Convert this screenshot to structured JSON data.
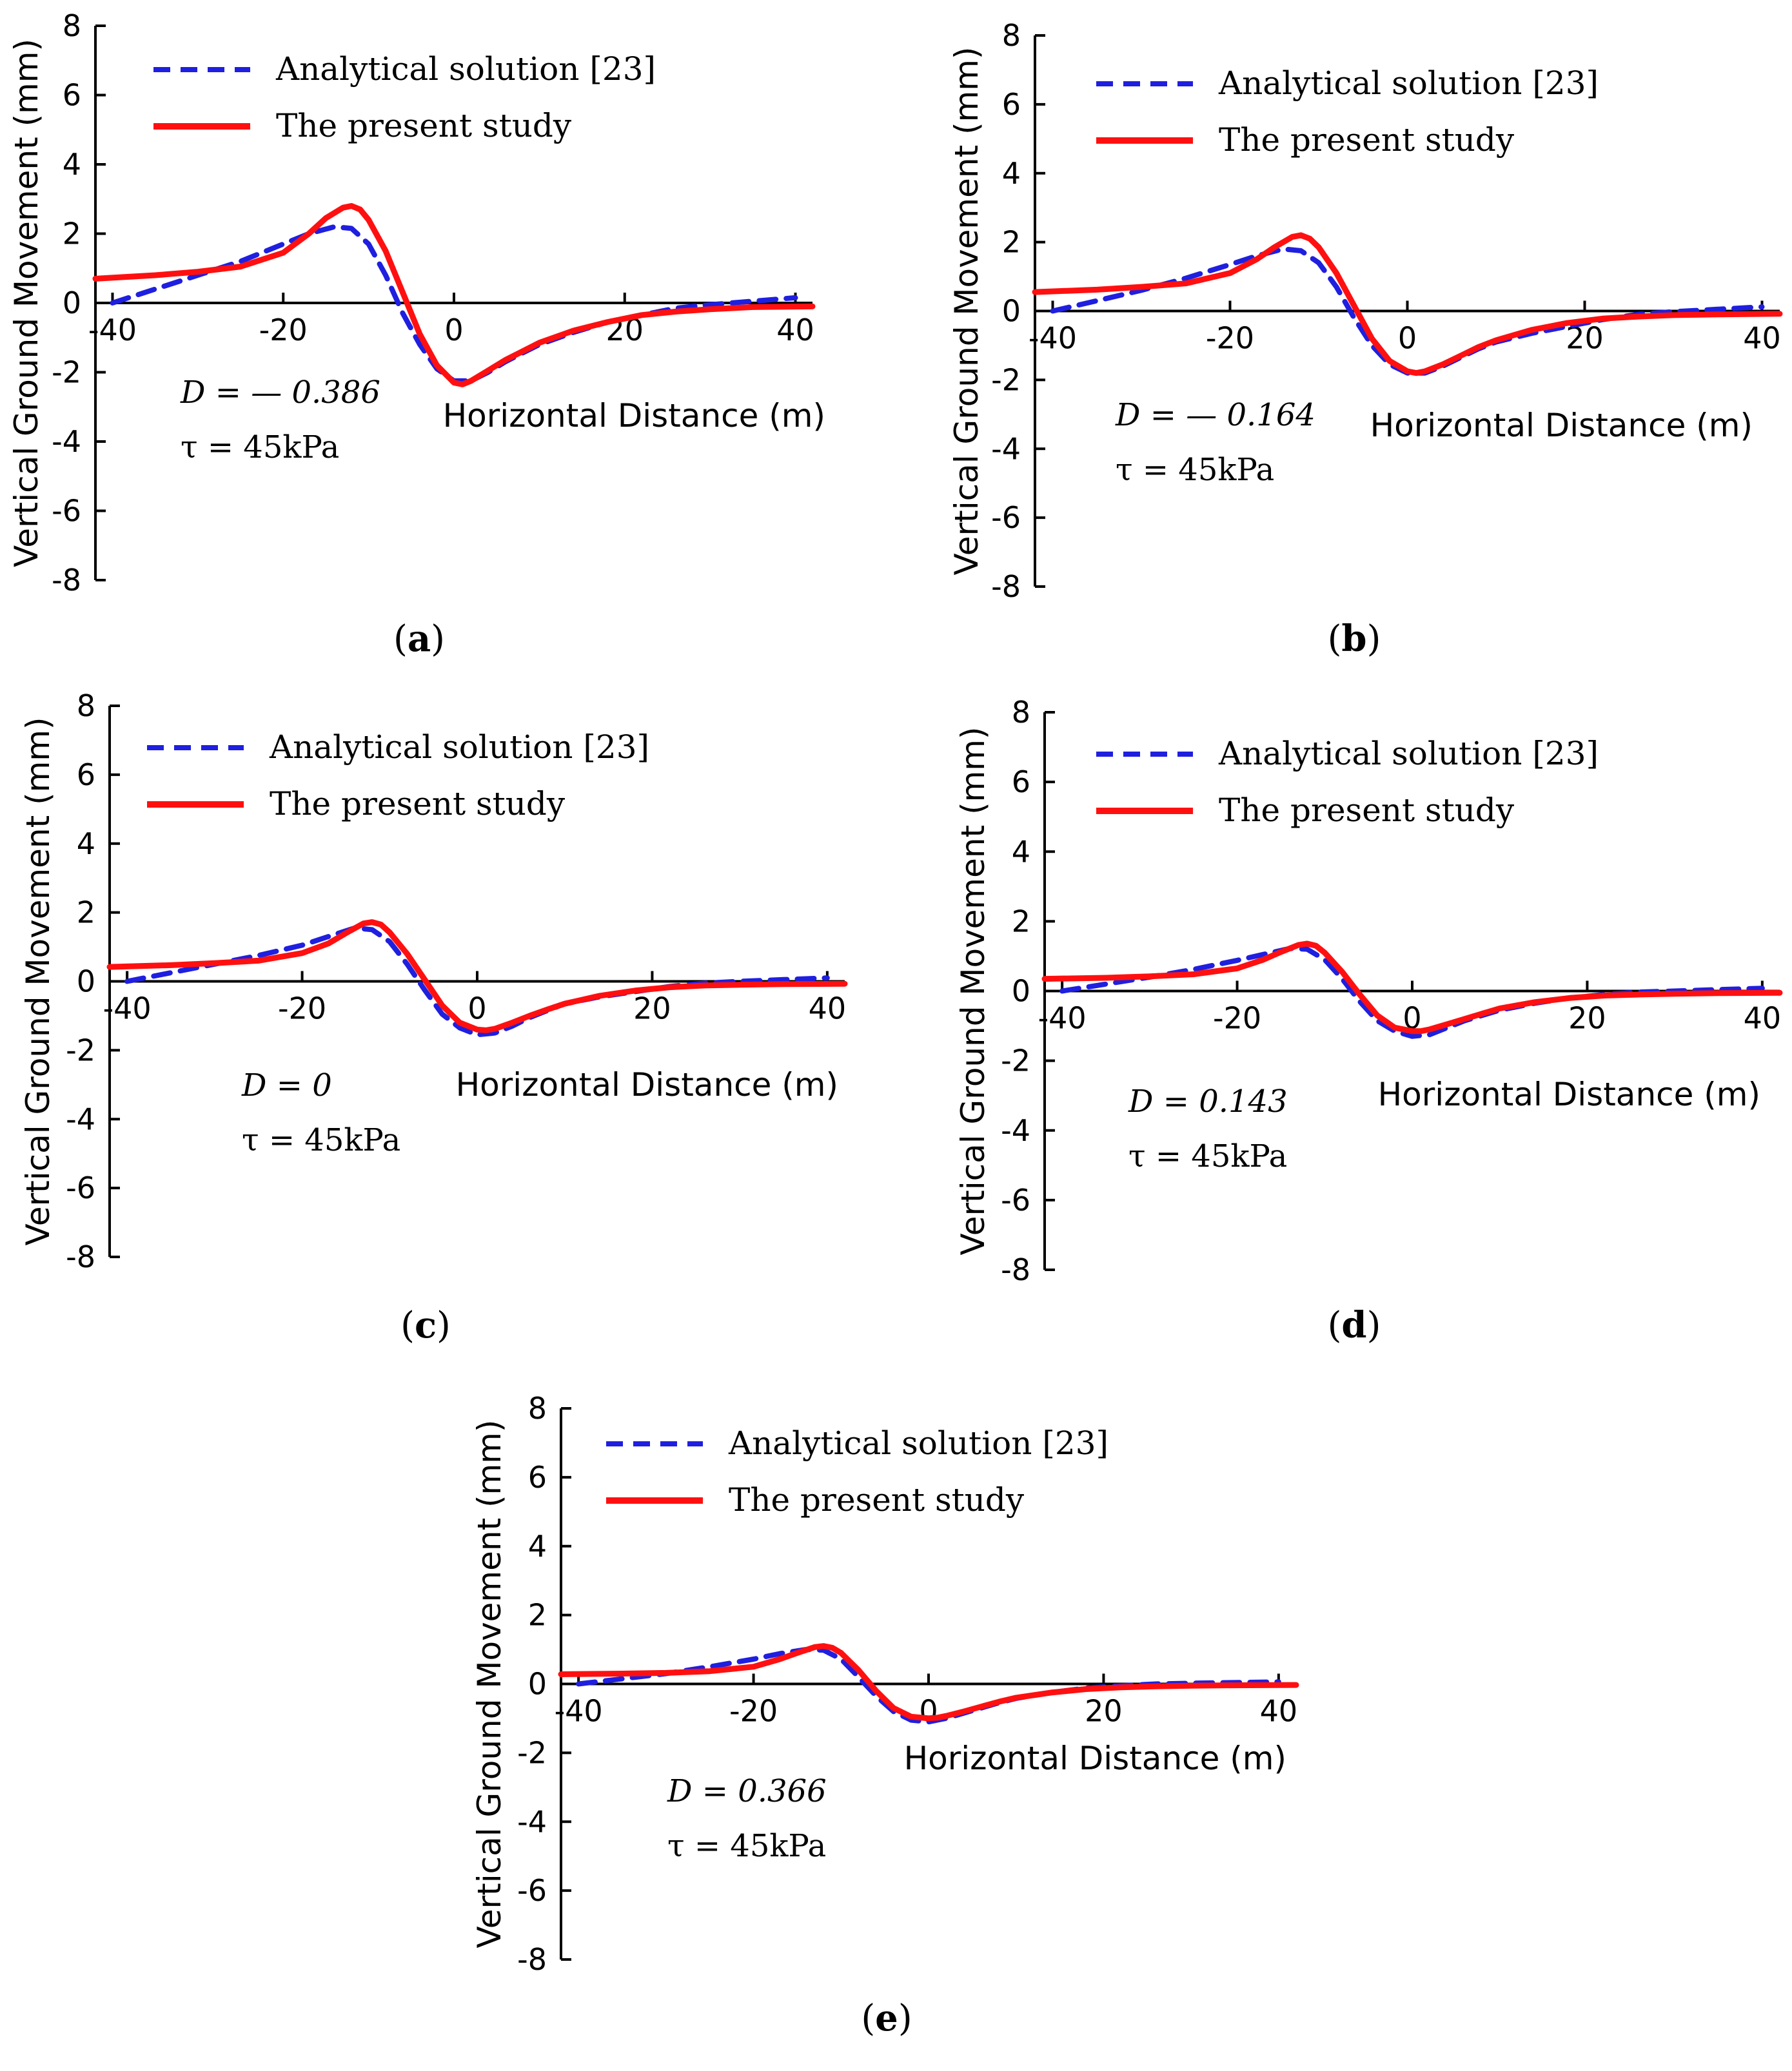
{
  "colors": {
    "analytical": "#1f1fe0",
    "present": "#ff1010",
    "axis": "#000000"
  },
  "chart_data": [
    {
      "panel": "a",
      "panel_label_open": "(",
      "panel_label_letter": "a",
      "panel_label_close": ")",
      "type": "line",
      "xlim": [
        -42,
        42
      ],
      "ylim": [
        -8,
        8
      ],
      "xticks": [
        -40,
        -20,
        0,
        20,
        40
      ],
      "yticks": [
        8,
        6,
        4,
        2,
        0,
        -2,
        -4,
        -6,
        -8
      ],
      "xlabel": "Horizontal Distance (m)",
      "ylabel": "Vertical Ground Movement (mm)",
      "annotation_D": "D = — 0.386",
      "annotation_tau": "τ  = 45kPa",
      "series": [
        {
          "name": "Analytical solution [23]",
          "style": "dashed",
          "x": [
            -40,
            -35,
            -30,
            -25,
            -20,
            -17,
            -14,
            -12,
            -10,
            -8,
            -6,
            -4,
            -2,
            0,
            2,
            4,
            6,
            8,
            10,
            14,
            18,
            22,
            26,
            30,
            35,
            40
          ],
          "y": [
            0.0,
            0.4,
            0.8,
            1.2,
            1.7,
            2.0,
            2.2,
            2.15,
            1.7,
            0.8,
            -0.3,
            -1.2,
            -1.9,
            -2.25,
            -2.25,
            -2.0,
            -1.7,
            -1.45,
            -1.2,
            -0.85,
            -0.55,
            -0.35,
            -0.15,
            -0.05,
            0.05,
            0.15
          ]
        },
        {
          "name": "The present study",
          "style": "solid",
          "x": [
            -42,
            -35,
            -30,
            -25,
            -20,
            -17,
            -15,
            -13,
            -12,
            -11,
            -10,
            -8,
            -6,
            -4,
            -2,
            0,
            1,
            2,
            4,
            6,
            8,
            10,
            14,
            18,
            22,
            26,
            30,
            35,
            42
          ],
          "y": [
            0.7,
            0.8,
            0.9,
            1.05,
            1.45,
            2.0,
            2.45,
            2.75,
            2.8,
            2.7,
            2.4,
            1.5,
            0.3,
            -0.9,
            -1.8,
            -2.3,
            -2.35,
            -2.25,
            -1.95,
            -1.65,
            -1.4,
            -1.15,
            -0.8,
            -0.55,
            -0.35,
            -0.25,
            -0.18,
            -0.12,
            -0.1
          ]
        }
      ]
    },
    {
      "panel": "b",
      "panel_label_open": "(",
      "panel_label_letter": "b",
      "panel_label_close": ")",
      "type": "line",
      "xlim": [
        -42,
        42
      ],
      "ylim": [
        -8,
        8
      ],
      "xticks": [
        -40,
        -20,
        0,
        20,
        40
      ],
      "yticks": [
        8,
        6,
        4,
        2,
        0,
        -2,
        -4,
        -6,
        -8
      ],
      "xlabel": "Horizontal Distance (m)",
      "ylabel": "Vertical Ground Movement (mm)",
      "annotation_D": "D = — 0.164",
      "annotation_tau": "τ = 45kPa",
      "series": [
        {
          "name": "Analytical solution [23]",
          "style": "dashed",
          "x": [
            -40,
            -35,
            -30,
            -25,
            -20,
            -17,
            -14,
            -12,
            -10,
            -8,
            -6,
            -4,
            -2,
            0,
            2,
            4,
            6,
            8,
            10,
            14,
            18,
            22,
            26,
            30,
            35,
            40
          ],
          "y": [
            0.0,
            0.3,
            0.6,
            0.95,
            1.35,
            1.6,
            1.8,
            1.75,
            1.4,
            0.7,
            -0.2,
            -1.0,
            -1.55,
            -1.8,
            -1.8,
            -1.6,
            -1.35,
            -1.1,
            -0.9,
            -0.65,
            -0.45,
            -0.25,
            -0.1,
            -0.02,
            0.05,
            0.12
          ]
        },
        {
          "name": "The present study",
          "style": "solid",
          "x": [
            -42,
            -35,
            -30,
            -25,
            -20,
            -17,
            -15,
            -13,
            -12,
            -11,
            -10,
            -8,
            -6,
            -4,
            -2,
            0,
            1,
            2,
            4,
            6,
            8,
            10,
            14,
            18,
            22,
            26,
            30,
            35,
            42
          ],
          "y": [
            0.55,
            0.62,
            0.7,
            0.8,
            1.1,
            1.5,
            1.85,
            2.15,
            2.2,
            2.1,
            1.85,
            1.1,
            0.15,
            -0.8,
            -1.45,
            -1.75,
            -1.8,
            -1.75,
            -1.55,
            -1.3,
            -1.05,
            -0.85,
            -0.55,
            -0.35,
            -0.22,
            -0.16,
            -0.12,
            -0.1,
            -0.08
          ]
        }
      ]
    },
    {
      "panel": "c",
      "panel_label_open": "(",
      "panel_label_letter": "c",
      "panel_label_close": ")",
      "type": "line",
      "xlim": [
        -42,
        42
      ],
      "ylim": [
        -8,
        8
      ],
      "xticks": [
        -40,
        -20,
        0,
        20,
        40
      ],
      "yticks": [
        8,
        6,
        4,
        2,
        0,
        -2,
        -4,
        -6,
        -8
      ],
      "xlabel": "Horizontal Distance (m)",
      "ylabel": "Vertical Ground Movement (mm)",
      "annotation_D": "D = 0",
      "annotation_tau": "τ = 45kPa",
      "series": [
        {
          "name": "Analytical solution [23]",
          "style": "dashed",
          "x": [
            -40,
            -35,
            -30,
            -25,
            -20,
            -17,
            -14,
            -12,
            -10,
            -8,
            -6,
            -4,
            -2,
            0,
            2,
            4,
            6,
            8,
            10,
            14,
            18,
            22,
            26,
            30,
            35,
            40
          ],
          "y": [
            0.0,
            0.25,
            0.5,
            0.75,
            1.05,
            1.3,
            1.55,
            1.5,
            1.15,
            0.5,
            -0.25,
            -0.95,
            -1.35,
            -1.55,
            -1.5,
            -1.3,
            -1.05,
            -0.85,
            -0.65,
            -0.45,
            -0.3,
            -0.15,
            -0.05,
            0.0,
            0.05,
            0.1
          ]
        },
        {
          "name": "The present study",
          "style": "solid",
          "x": [
            -42,
            -35,
            -30,
            -25,
            -20,
            -17,
            -15,
            -13,
            -12,
            -11,
            -10,
            -8,
            -6,
            -4,
            -2,
            0,
            1,
            2,
            4,
            6,
            8,
            10,
            14,
            18,
            22,
            26,
            30,
            35,
            42
          ],
          "y": [
            0.42,
            0.47,
            0.53,
            0.6,
            0.82,
            1.1,
            1.4,
            1.68,
            1.72,
            1.65,
            1.42,
            0.8,
            0.05,
            -0.7,
            -1.2,
            -1.4,
            -1.42,
            -1.38,
            -1.2,
            -1.0,
            -0.82,
            -0.65,
            -0.42,
            -0.27,
            -0.17,
            -0.12,
            -0.1,
            -0.08,
            -0.07
          ]
        }
      ]
    },
    {
      "panel": "d",
      "panel_label_open": "(",
      "panel_label_letter": "d",
      "panel_label_close": ")",
      "type": "line",
      "xlim": [
        -42,
        42
      ],
      "ylim": [
        -8,
        8
      ],
      "xticks": [
        -40,
        -20,
        0,
        20,
        40
      ],
      "yticks": [
        8,
        6,
        4,
        2,
        0,
        -2,
        -4,
        -6,
        -8
      ],
      "xlabel": "Horizontal Distance (m)",
      "ylabel": "Vertical Ground Movement (mm)",
      "annotation_D": "D = 0.143",
      "annotation_tau": "τ = 45kPa",
      "series": [
        {
          "name": "Analytical solution [23]",
          "style": "dashed",
          "x": [
            -40,
            -35,
            -30,
            -25,
            -20,
            -17,
            -14,
            -12,
            -10,
            -8,
            -6,
            -4,
            -2,
            0,
            2,
            4,
            6,
            8,
            10,
            14,
            18,
            22,
            26,
            30,
            35,
            40
          ],
          "y": [
            0.0,
            0.2,
            0.4,
            0.62,
            0.88,
            1.05,
            1.22,
            1.2,
            0.9,
            0.35,
            -0.3,
            -0.85,
            -1.15,
            -1.3,
            -1.25,
            -1.05,
            -0.85,
            -0.7,
            -0.55,
            -0.35,
            -0.2,
            -0.1,
            -0.03,
            0.0,
            0.04,
            0.08
          ]
        },
        {
          "name": "The present study",
          "style": "solid",
          "x": [
            -42,
            -35,
            -30,
            -25,
            -20,
            -17,
            -15,
            -13,
            -12,
            -11,
            -10,
            -8,
            -6,
            -4,
            -2,
            0,
            1,
            2,
            4,
            6,
            8,
            10,
            14,
            18,
            22,
            26,
            30,
            35,
            42
          ],
          "y": [
            0.35,
            0.38,
            0.42,
            0.48,
            0.65,
            0.9,
            1.12,
            1.32,
            1.36,
            1.3,
            1.1,
            0.55,
            -0.1,
            -0.7,
            -1.05,
            -1.15,
            -1.15,
            -1.1,
            -0.95,
            -0.8,
            -0.65,
            -0.5,
            -0.32,
            -0.2,
            -0.13,
            -0.1,
            -0.08,
            -0.06,
            -0.05
          ]
        }
      ]
    },
    {
      "panel": "e",
      "panel_label_open": "(",
      "panel_label_letter": "e",
      "panel_label_close": ")",
      "type": "line",
      "xlim": [
        -42,
        42
      ],
      "ylim": [
        -8,
        8
      ],
      "xticks": [
        -40,
        -20,
        0,
        20,
        40
      ],
      "yticks": [
        8,
        6,
        4,
        2,
        0,
        -2,
        -4,
        -6,
        -8
      ],
      "xlabel": "Horizontal Distance (m)",
      "ylabel": "Vertical Ground Movement (mm)",
      "annotation_D": "D = 0.366",
      "annotation_tau": "τ = 45kPa",
      "series": [
        {
          "name": "Analytical solution [23]",
          "style": "dashed",
          "x": [
            -40,
            -35,
            -30,
            -25,
            -20,
            -17,
            -14,
            -12,
            -10,
            -8,
            -6,
            -4,
            -2,
            0,
            2,
            4,
            6,
            8,
            10,
            14,
            18,
            22,
            26,
            30,
            35,
            40
          ],
          "y": [
            0.0,
            0.15,
            0.3,
            0.5,
            0.72,
            0.88,
            1.0,
            0.98,
            0.72,
            0.2,
            -0.35,
            -0.8,
            -1.05,
            -1.1,
            -1.0,
            -0.85,
            -0.7,
            -0.55,
            -0.42,
            -0.25,
            -0.12,
            -0.05,
            0.0,
            0.02,
            0.04,
            0.06
          ]
        },
        {
          "name": "The present study",
          "style": "solid",
          "x": [
            -42,
            -35,
            -30,
            -25,
            -20,
            -17,
            -15,
            -13,
            -12,
            -11,
            -10,
            -8,
            -6,
            -4,
            -2,
            0,
            1,
            2,
            4,
            6,
            8,
            10,
            14,
            18,
            22,
            26,
            30,
            35,
            42
          ],
          "y": [
            0.28,
            0.3,
            0.32,
            0.37,
            0.5,
            0.72,
            0.9,
            1.07,
            1.1,
            1.05,
            0.9,
            0.4,
            -0.2,
            -0.7,
            -0.95,
            -1.0,
            -0.98,
            -0.93,
            -0.8,
            -0.66,
            -0.52,
            -0.4,
            -0.25,
            -0.15,
            -0.1,
            -0.07,
            -0.05,
            -0.04,
            -0.03
          ]
        }
      ]
    }
  ]
}
